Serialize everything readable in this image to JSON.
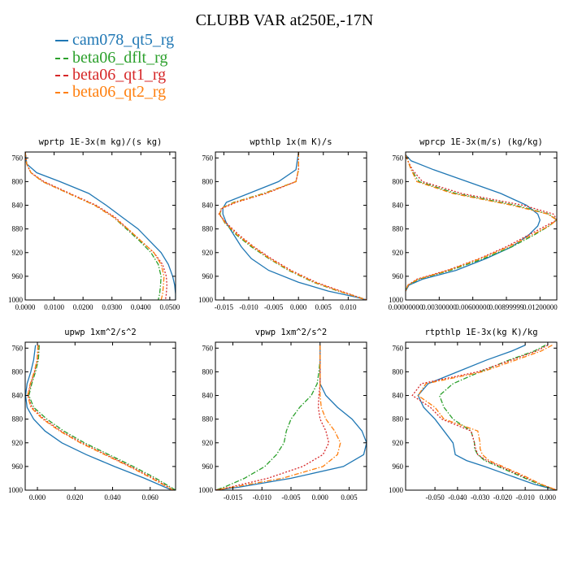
{
  "title": "CLUBB VAR at250E,-17N",
  "legend": [
    {
      "label": "cam078_qt5_rg",
      "color": "#1f77b4",
      "dash": "solid"
    },
    {
      "label": "beta06_dflt_rg",
      "color": "#2ca02c",
      "dash": "dashdot"
    },
    {
      "label": "beta06_qt1_rg",
      "color": "#d62728",
      "dash": "dotted"
    },
    {
      "label": "beta06_qt2_rg",
      "color": "#ff7f0e",
      "dash": "dashdot"
    }
  ],
  "chart_data": [
    {
      "type": "line",
      "title": "wprtp  1E-3x(m kg)/(s kg)",
      "xlim": [
        0.0,
        0.052
      ],
      "ylim": [
        1000,
        750
      ],
      "xticks": [
        0.0,
        0.01,
        0.02,
        0.03,
        0.04,
        0.05
      ],
      "xtick_labels": [
        "0.0000",
        "0.0100",
        "0.0200",
        "0.0300",
        "0.0400",
        "0.0500"
      ],
      "yticks": [
        760,
        800,
        840,
        880,
        920,
        960,
        1000
      ],
      "y": [
        750,
        770,
        785,
        800,
        820,
        840,
        860,
        880,
        900,
        920,
        940,
        960,
        975,
        990,
        1000
      ],
      "series": [
        {
          "name": "cam078_qt5_rg",
          "x": [
            0.0,
            0.0005,
            0.004,
            0.012,
            0.022,
            0.028,
            0.0335,
            0.039,
            0.043,
            0.047,
            0.0495,
            0.051,
            0.0517,
            0.052,
            0.052
          ]
        },
        {
          "name": "beta06_dflt_rg",
          "x": [
            0.0,
            0.0005,
            0.002,
            0.006,
            0.015,
            0.024,
            0.0305,
            0.035,
            0.0395,
            0.0435,
            0.046,
            0.047,
            0.0468,
            0.0465,
            0.046
          ]
        },
        {
          "name": "beta06_qt1_rg",
          "x": [
            0.0,
            0.0005,
            0.002,
            0.0065,
            0.0155,
            0.0245,
            0.031,
            0.0355,
            0.04,
            0.0445,
            0.0475,
            0.0488,
            0.049,
            0.0488,
            0.0485
          ]
        },
        {
          "name": "beta06_qt2_rg",
          "x": [
            0.0,
            0.0005,
            0.002,
            0.006,
            0.015,
            0.024,
            0.0305,
            0.0355,
            0.04,
            0.0445,
            0.047,
            0.048,
            0.0478,
            0.0475,
            0.047
          ]
        }
      ]
    },
    {
      "type": "line",
      "title": "wpthlp  1x(m K)/s",
      "xlim": [
        -0.0167,
        0.0137
      ],
      "ylim": [
        1000,
        750
      ],
      "xticks": [
        -0.015,
        -0.01,
        -0.005,
        0.0,
        0.005,
        0.01
      ],
      "xtick_labels": [
        "-0.015",
        "-0.010",
        "-0.005",
        "0.000",
        "0.005",
        "0.010"
      ],
      "yticks": [
        760,
        800,
        840,
        880,
        920,
        960,
        1000
      ],
      "y": [
        750,
        780,
        800,
        820,
        835,
        845,
        855,
        870,
        890,
        910,
        930,
        950,
        970,
        985,
        995,
        1000
      ],
      "series": [
        {
          "name": "cam078_qt5_rg",
          "x": [
            0.0,
            -0.0005,
            -0.004,
            -0.01,
            -0.0145,
            -0.0152,
            -0.0152,
            -0.0145,
            -0.013,
            -0.0115,
            -0.0095,
            -0.006,
            0.0,
            0.006,
            0.0115,
            0.0137
          ]
        },
        {
          "name": "beta06_dflt_rg",
          "x": [
            0.0,
            0.0,
            -0.0005,
            -0.007,
            -0.013,
            -0.0155,
            -0.0158,
            -0.0148,
            -0.0125,
            -0.0095,
            -0.006,
            -0.002,
            0.003,
            0.008,
            0.012,
            0.0137
          ]
        },
        {
          "name": "beta06_qt1_rg",
          "x": [
            0.0,
            0.0,
            -0.0005,
            -0.0065,
            -0.0125,
            -0.0153,
            -0.016,
            -0.0145,
            -0.012,
            -0.009,
            -0.0055,
            -0.0015,
            0.0035,
            0.0085,
            0.012,
            0.0137
          ]
        },
        {
          "name": "beta06_qt2_rg",
          "x": [
            0.0,
            0.0,
            -0.0005,
            -0.0068,
            -0.0128,
            -0.0155,
            -0.0159,
            -0.0147,
            -0.0123,
            -0.0092,
            -0.0058,
            -0.0018,
            0.0032,
            0.0082,
            0.0118,
            0.0137
          ]
        }
      ]
    },
    {
      "type": "line",
      "title": "wprcp  1E-3x(m/s) (kg/kg)",
      "xlim": [
        0.0,
        0.0135
      ],
      "ylim": [
        1000,
        750
      ],
      "xticks": [
        0.0,
        0.003,
        0.006,
        0.009,
        0.012
      ],
      "xtick_labels": [
        "0.00000000",
        "0.00300000",
        "0.00600000",
        "0.00899999",
        "0.01200000"
      ],
      "yticks": [
        760,
        800,
        840,
        880,
        920,
        960,
        1000
      ],
      "y": [
        755,
        765,
        780,
        800,
        820,
        840,
        855,
        865,
        875,
        890,
        910,
        930,
        950,
        965,
        975,
        985
      ],
      "series": [
        {
          "name": "cam078_qt5_rg",
          "x": [
            0.0,
            0.0005,
            0.0025,
            0.0055,
            0.0085,
            0.0108,
            0.0118,
            0.012,
            0.0118,
            0.011,
            0.0095,
            0.0072,
            0.0045,
            0.0015,
            0.0003,
            0.0
          ]
        },
        {
          "name": "beta06_dflt_rg",
          "x": [
            0.0,
            0.0002,
            0.0005,
            0.0012,
            0.0045,
            0.0098,
            0.0128,
            0.0135,
            0.0128,
            0.0115,
            0.0095,
            0.007,
            0.004,
            0.0012,
            0.0002,
            0.0
          ]
        },
        {
          "name": "beta06_qt1_rg",
          "x": [
            0.0,
            0.0002,
            0.0006,
            0.0015,
            0.005,
            0.0105,
            0.0132,
            0.0135,
            0.0125,
            0.011,
            0.009,
            0.0066,
            0.0037,
            0.001,
            0.0002,
            0.0
          ]
        },
        {
          "name": "beta06_qt2_rg",
          "x": [
            0.0,
            0.0002,
            0.0005,
            0.001,
            0.0042,
            0.0095,
            0.0127,
            0.0135,
            0.0128,
            0.0113,
            0.0092,
            0.0067,
            0.0038,
            0.0011,
            0.0002,
            0.0
          ]
        }
      ]
    },
    {
      "type": "line",
      "title": "upwp  1xm^2/s^2",
      "xlim": [
        -0.0065,
        0.0735
      ],
      "ylim": [
        1000,
        750
      ],
      "xticks": [
        0.0,
        0.02,
        0.04,
        0.06
      ],
      "xtick_labels": [
        "0.000",
        "0.020",
        "0.040",
        "0.060"
      ],
      "yticks": [
        760,
        800,
        840,
        880,
        920,
        960,
        1000
      ],
      "y": [
        755,
        780,
        800,
        820,
        840,
        860,
        880,
        900,
        920,
        940,
        960,
        980,
        1000
      ],
      "series": [
        {
          "name": "cam078_qt5_rg",
          "x": [
            -0.001,
            -0.002,
            -0.0035,
            -0.0055,
            -0.0063,
            -0.0055,
            -0.002,
            0.004,
            0.013,
            0.026,
            0.041,
            0.057,
            0.0715
          ]
        },
        {
          "name": "beta06_dflt_rg",
          "x": [
            0.001,
            0.0005,
            -0.001,
            -0.003,
            -0.0045,
            -0.002,
            0.005,
            0.014,
            0.025,
            0.038,
            0.051,
            0.063,
            0.0735
          ]
        },
        {
          "name": "beta06_qt1_rg",
          "x": [
            0.0005,
            0.0,
            -0.0015,
            -0.0035,
            -0.005,
            -0.003,
            0.0035,
            0.0125,
            0.0235,
            0.0365,
            0.0495,
            0.0615,
            0.0725
          ]
        },
        {
          "name": "beta06_qt2_rg",
          "x": [
            0.0003,
            -0.0002,
            -0.0017,
            -0.0038,
            -0.0052,
            -0.0035,
            0.0028,
            0.0118,
            0.0228,
            0.0358,
            0.0488,
            0.0608,
            0.072
          ]
        }
      ]
    },
    {
      "type": "line",
      "title": "vpwp  1xm^2/s^2",
      "xlim": [
        -0.018,
        0.008
      ],
      "ylim": [
        1000,
        750
      ],
      "xticks": [
        -0.015,
        -0.01,
        -0.005,
        0.0,
        0.005
      ],
      "xtick_labels": [
        "-0.015",
        "-0.010",
        "-0.005",
        "0.000",
        "0.005"
      ],
      "yticks": [
        760,
        800,
        840,
        880,
        920,
        960,
        1000
      ],
      "y": [
        755,
        780,
        800,
        820,
        840,
        860,
        880,
        900,
        920,
        940,
        960,
        980,
        995,
        1000
      ],
      "series": [
        {
          "name": "cam078_qt5_rg",
          "x": [
            0.0,
            0.0,
            0.0,
            0.0,
            0.001,
            0.003,
            0.0055,
            0.0072,
            0.008,
            0.0075,
            0.004,
            -0.005,
            -0.014,
            -0.018
          ]
        },
        {
          "name": "beta06_dflt_rg",
          "x": [
            0.0,
            0.0,
            -0.0002,
            -0.0005,
            -0.0015,
            -0.0035,
            -0.005,
            -0.0058,
            -0.0062,
            -0.0075,
            -0.0095,
            -0.013,
            -0.0165,
            -0.018
          ]
        },
        {
          "name": "beta06_qt1_rg",
          "x": [
            0.0,
            0.0,
            0.0,
            0.0,
            -0.0002,
            -0.0003,
            0.0,
            0.001,
            0.0015,
            0.0005,
            -0.003,
            -0.009,
            -0.0155,
            -0.018
          ]
        },
        {
          "name": "beta06_qt2_rg",
          "x": [
            0.0,
            0.0,
            0.0,
            0.0,
            0.0,
            0.0002,
            0.001,
            0.0025,
            0.0035,
            0.003,
            0.0005,
            -0.0065,
            -0.015,
            -0.018
          ]
        }
      ]
    },
    {
      "type": "line",
      "title": "rtpthlp  1E-3x(kg K)/kg",
      "xlim": [
        -0.063,
        0.004
      ],
      "ylim": [
        1000,
        750
      ],
      "xticks": [
        -0.05,
        -0.04,
        -0.03,
        -0.02,
        -0.01,
        0.0
      ],
      "xtick_labels": [
        "-0.050",
        "-0.040",
        "-0.030",
        "-0.020",
        "-0.010",
        "0.000"
      ],
      "yticks": [
        760,
        800,
        840,
        880,
        920,
        960,
        1000
      ],
      "y": [
        755,
        765,
        780,
        800,
        820,
        840,
        860,
        880,
        900,
        920,
        930,
        940,
        950,
        960,
        975,
        990,
        1000
      ],
      "series": [
        {
          "name": "cam078_qt5_rg",
          "x": [
            -0.01,
            -0.016,
            -0.027,
            -0.04,
            -0.053,
            -0.0575,
            -0.055,
            -0.05,
            -0.046,
            -0.042,
            -0.0415,
            -0.041,
            -0.036,
            -0.028,
            -0.017,
            -0.006,
            0.004
          ]
        },
        {
          "name": "beta06_dflt_rg",
          "x": [
            -0.001,
            -0.006,
            -0.017,
            -0.03,
            -0.042,
            -0.048,
            -0.046,
            -0.042,
            -0.034,
            -0.0325,
            -0.0325,
            -0.031,
            -0.028,
            -0.022,
            -0.013,
            -0.004,
            0.004
          ]
        },
        {
          "name": "beta06_qt1_rg",
          "x": [
            0.0,
            -0.005,
            -0.016,
            -0.031,
            -0.056,
            -0.06,
            -0.052,
            -0.047,
            -0.034,
            -0.0325,
            -0.032,
            -0.031,
            -0.027,
            -0.021,
            -0.012,
            -0.003,
            0.004
          ]
        },
        {
          "name": "beta06_qt2_rg",
          "x": [
            0.002,
            -0.003,
            -0.014,
            -0.029,
            -0.054,
            -0.0575,
            -0.05,
            -0.046,
            -0.031,
            -0.03,
            -0.03,
            -0.029,
            -0.026,
            -0.02,
            -0.011,
            -0.003,
            0.004
          ]
        }
      ]
    }
  ]
}
